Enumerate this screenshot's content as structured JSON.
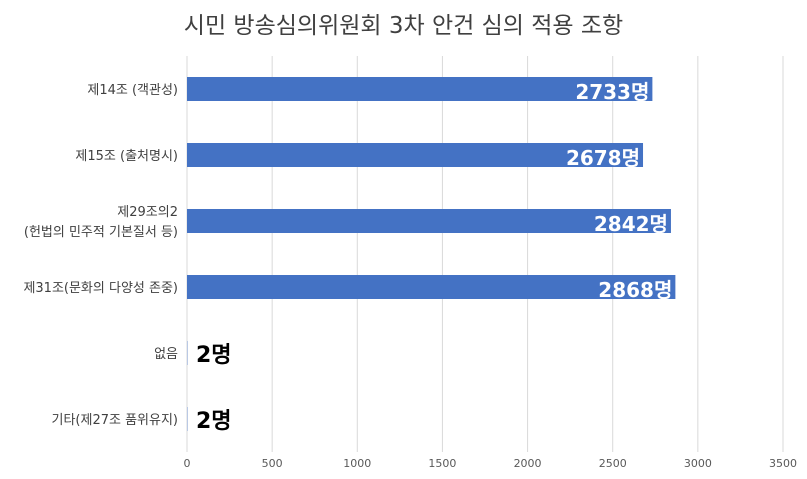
{
  "chart_data": {
    "type": "bar",
    "orientation": "horizontal",
    "title": "시민 방송심의위원회 3차 안건 심의 적용 조항",
    "categories": [
      "제14조 (객관성)",
      "제15조 (출처명시)",
      "제29조의2\n(헌법의 민주적 기본질서 등)",
      "제31조(문화의 다양성 존중)",
      "없음",
      "기타(제27조 품위유지)"
    ],
    "values": [
      2733,
      2678,
      2842,
      2868,
      2,
      2
    ],
    "data_labels": [
      "2733명",
      "2678명",
      "2842명",
      "2868명",
      "2명",
      "2명"
    ],
    "xlim": [
      0,
      3500
    ],
    "x_ticks": [
      0,
      500,
      1000,
      1500,
      2000,
      2500,
      3000,
      3500
    ],
    "grid": "vertical",
    "legend": "none",
    "bar_color": "#4472C4",
    "inside_label_color": "#ffffff",
    "outside_label_color": "#000000",
    "gridline_color": "#D9D9D9",
    "text_color": "#404040"
  }
}
